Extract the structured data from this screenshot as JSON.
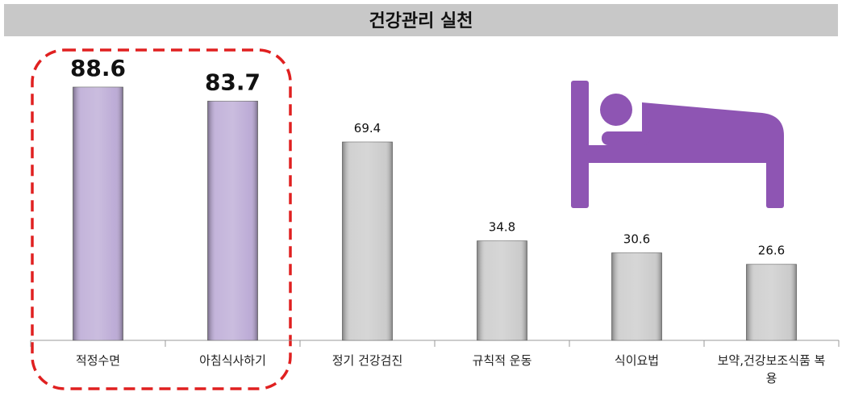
{
  "chart_data": {
    "type": "bar",
    "title": "건강관리 실천",
    "categories": [
      "적정수면",
      "아침식사하기",
      "정기 건강검진",
      "규칙적 운동",
      "식이요법",
      "보약,건강보조식품 복용"
    ],
    "values": [
      88.6,
      83.7,
      69.4,
      34.8,
      30.6,
      26.6
    ],
    "colors": [
      "#b9a7d4",
      "#b9a7d4",
      "#c9c9c9",
      "#c9c9c9",
      "#c9c9c9",
      "#c9c9c9"
    ],
    "highlight": [
      true,
      true,
      false,
      false,
      false,
      false
    ]
  }
}
